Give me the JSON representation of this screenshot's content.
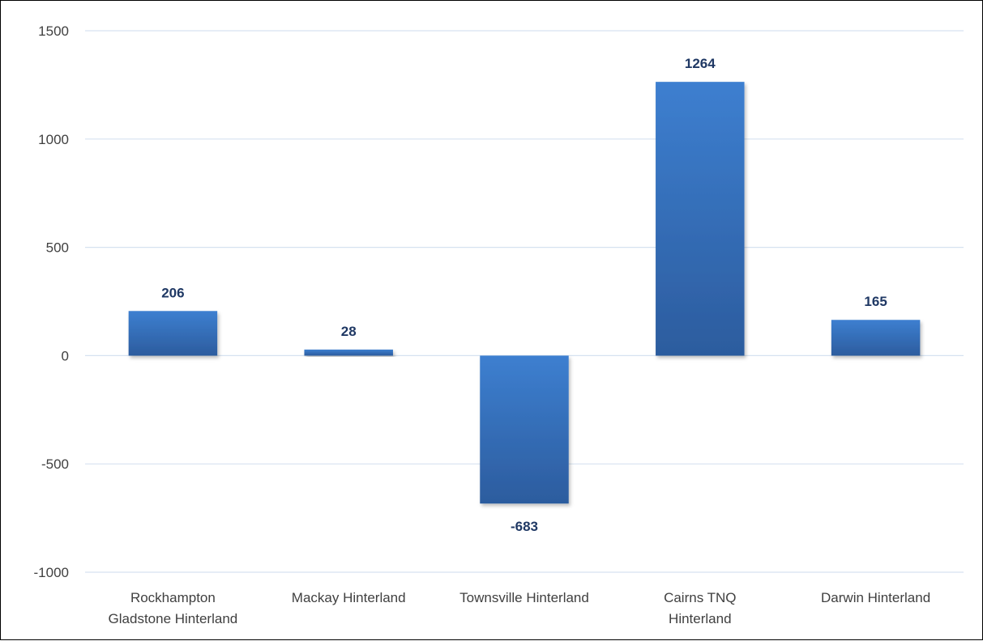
{
  "chart_data": {
    "type": "bar",
    "categories": [
      [
        "Rockhampton",
        "Gladstone Hinterland"
      ],
      [
        "Mackay Hinterland"
      ],
      [
        "Townsville Hinterland"
      ],
      [
        "Cairns TNQ",
        "Hinterland"
      ],
      [
        "Darwin Hinterland"
      ]
    ],
    "values": [
      206,
      28,
      -683,
      1264,
      165
    ],
    "data_labels": [
      "206",
      "28",
      "-683",
      "1264",
      "165"
    ],
    "y_ticks": [
      "1500",
      "1000",
      "500",
      "0",
      "-500",
      "-1000"
    ],
    "ylim": [
      -1000,
      1500
    ],
    "title": "",
    "xlabel": "",
    "ylabel": "",
    "grid": true,
    "legend": "none",
    "colors": {
      "bar_top": "#3d7fd0",
      "bar_bottom": "#2c5c9e",
      "gridline": "#d6e2f0",
      "data_label": "#1f3864",
      "axis_text": "#404040"
    }
  }
}
